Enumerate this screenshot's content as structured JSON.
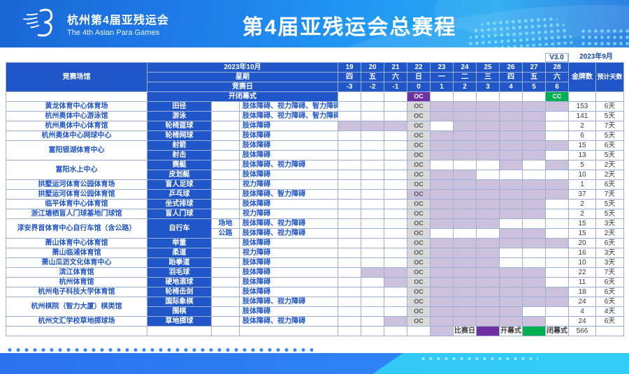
{
  "banner": {
    "logo_title": "杭州第4届亚残运会",
    "logo_subtitle": "The 4th Asian Para Games",
    "title": "第4届亚残运会总赛程"
  },
  "meta": {
    "version": "V3.0",
    "release_date": "2023年9月"
  },
  "header": {
    "venue_label": "竞赛场馆",
    "month_label": "2023年10月",
    "weekday_label": "星期",
    "compday_label": "竞赛日",
    "gold_label": "金牌数",
    "days_label": "预计天数",
    "dates": [
      "19",
      "20",
      "21",
      "22",
      "23",
      "24",
      "25",
      "26",
      "27",
      "28"
    ],
    "weekdays": [
      "四",
      "五",
      "六",
      "日",
      "一",
      "二",
      "三",
      "四",
      "五",
      "六"
    ],
    "comp_days": [
      "-3",
      "-2",
      "-1",
      "0",
      "1",
      "2",
      "3",
      "4",
      "5",
      "6"
    ]
  },
  "ceremony_row": {
    "label": "开闭幕式",
    "oc_text": "OC",
    "cc_text": "CC",
    "oc_day": 22,
    "cc_day": 28
  },
  "oc_cell_text": "OC",
  "rows": [
    {
      "venue": "黄龙体育中心体育场",
      "vspan": 1,
      "sport": "田径",
      "sspan": 1,
      "sub": "",
      "cat": "肢体障碍、视力障碍、智力障碍",
      "days": [
        23,
        24,
        25,
        26,
        27,
        28
      ],
      "gold": "153",
      "dur": "6天"
    },
    {
      "venue": "杭州奥体中心游泳馆",
      "vspan": 1,
      "sport": "游泳",
      "sspan": 1,
      "sub": "",
      "cat": "肢体障碍、视力障碍、智力障碍",
      "days": [
        23,
        24,
        25,
        26,
        27
      ],
      "gold": "141",
      "dur": "5天"
    },
    {
      "venue": "杭州奥体中心体育馆",
      "vspan": 1,
      "sport": "轮椅篮球",
      "sspan": 1,
      "sub": "",
      "cat": "肢体障碍",
      "days": [
        19,
        20,
        21,
        24,
        25,
        26,
        27
      ],
      "gold": "2",
      "dur": "7天"
    },
    {
      "venue": "杭州奥体中心网球中心",
      "vspan": 1,
      "sport": "轮椅网球",
      "sspan": 1,
      "sub": "",
      "cat": "肢体障碍",
      "days": [
        23,
        24,
        25,
        26,
        27
      ],
      "gold": "6",
      "dur": "5天"
    },
    {
      "venue": "富阳银湖体育中心",
      "vspan": 2,
      "sport": "射箭",
      "sspan": 1,
      "sub": "",
      "cat": "肢体障碍",
      "days": [
        23,
        24,
        25,
        26,
        27,
        28
      ],
      "gold": "15",
      "dur": "6天"
    },
    {
      "sport": "射击",
      "sspan": 1,
      "sub": "",
      "cat": "肢体障碍",
      "days": [
        23,
        24,
        25,
        26,
        27
      ],
      "gold": "13",
      "dur": "5天"
    },
    {
      "venue": "富阳水上中心",
      "vspan": 2,
      "sport": "赛艇",
      "sspan": 1,
      "sub": "",
      "cat": "肢体障碍、视力障碍",
      "days": [
        26,
        28
      ],
      "gold": "5",
      "dur": "2天"
    },
    {
      "sport": "皮划艇",
      "sspan": 1,
      "sub": "",
      "cat": "肢体障碍",
      "days": [
        23,
        24
      ],
      "gold": "10",
      "dur": "2天"
    },
    {
      "venue": "拱墅运河体育公园体育场",
      "vspan": 1,
      "sport": "盲人足球",
      "sspan": 1,
      "sub": "",
      "cat": "视力障碍",
      "days": [
        23,
        24,
        25,
        26,
        27,
        28
      ],
      "gold": "1",
      "dur": "6天"
    },
    {
      "venue": "拱墅运河体育公园体育馆",
      "vspan": 1,
      "sport": "乒乓球",
      "sspan": 1,
      "sub": "",
      "cat": "肢体障碍、智力障碍",
      "days": [
        22,
        23,
        24,
        25,
        26,
        27,
        28
      ],
      "gold": "37",
      "dur": "7天"
    },
    {
      "venue": "临平体育中心体育馆",
      "vspan": 1,
      "sport": "坐式排球",
      "sspan": 1,
      "sub": "",
      "cat": "肢体障碍",
      "days": [
        23,
        24,
        25,
        26,
        27
      ],
      "gold": "2",
      "dur": "5天"
    },
    {
      "venue": "浙江塘栖盲人门球基地门球馆",
      "vspan": 1,
      "sport": "盲人门球",
      "sspan": 1,
      "sub": "",
      "cat": "视力障碍",
      "days": [
        23,
        24,
        25,
        26,
        27
      ],
      "gold": "2",
      "dur": "5天"
    },
    {
      "venue": "淳安界首体育中心自行车馆（含公路）",
      "vspan": 2,
      "sport": "自行车",
      "sspan": 2,
      "sub": "场地",
      "cat": "肢体障碍、视力障碍",
      "days": [
        23,
        24,
        25
      ],
      "gold": "15",
      "dur": "3天"
    },
    {
      "sub": "公路",
      "cat": "肢体障碍、视力障碍",
      "days": [
        26,
        27
      ],
      "gold": "15",
      "dur": "2天"
    },
    {
      "venue": "萧山体育中心体育馆",
      "vspan": 1,
      "sport": "举重",
      "sspan": 1,
      "sub": "",
      "cat": "肢体障碍",
      "days": [
        23,
        24,
        25,
        26,
        27,
        28
      ],
      "gold": "20",
      "dur": "6天"
    },
    {
      "venue": "萧山临浦体育馆",
      "vspan": 1,
      "sport": "柔道",
      "sspan": 1,
      "sub": "",
      "cat": "视力障碍",
      "days": [
        23,
        24,
        25
      ],
      "gold": "16",
      "dur": "3天"
    },
    {
      "venue": "萧山瓜沥文化体育中心",
      "vspan": 1,
      "sport": "跆拳道",
      "sspan": 1,
      "sub": "",
      "cat": "肢体障碍",
      "days": [
        23,
        24,
        25
      ],
      "gold": "10",
      "dur": "3天"
    },
    {
      "venue": "滨江体育馆",
      "vspan": 1,
      "sport": "羽毛球",
      "sspan": 1,
      "sub": "",
      "cat": "肢体障碍",
      "days": [
        20,
        21,
        23,
        24,
        25,
        26,
        27
      ],
      "gold": "22",
      "dur": "7天"
    },
    {
      "venue": "杭州体育馆",
      "vspan": 1,
      "sport": "硬地滚球",
      "sspan": 1,
      "sub": "",
      "cat": "肢体障碍",
      "days": [
        21,
        23,
        24,
        25,
        26,
        27
      ],
      "gold": "11",
      "dur": "6天"
    },
    {
      "venue": "杭州电子科技大学体育馆",
      "vspan": 1,
      "sport": "轮椅击剑",
      "sspan": 1,
      "sub": "",
      "cat": "肢体障碍",
      "days": [
        23,
        24,
        25,
        26,
        27,
        28
      ],
      "gold": "18",
      "dur": "6天"
    },
    {
      "venue": "杭州棋院（智力大厦）棋类馆",
      "vspan": 2,
      "sport": "国际象棋",
      "sspan": 1,
      "sub": "",
      "cat": "肢体障碍、视力障碍",
      "days": [
        23,
        24,
        25,
        26,
        27,
        28
      ],
      "gold": "24",
      "dur": "6天"
    },
    {
      "sport": "围棋",
      "sspan": 1,
      "sub": "",
      "cat": "肢体障碍",
      "days": [
        23,
        24,
        25,
        26
      ],
      "gold": "4",
      "dur": "4天"
    },
    {
      "venue": "杭州文汇学校草地掷球场",
      "vspan": 1,
      "sport": "草地掷球",
      "sspan": 1,
      "sub": "",
      "cat": "肢体障碍、视力障碍",
      "days": [
        21,
        23,
        24,
        25,
        26,
        27
      ],
      "gold": "24",
      "dur": "6天"
    }
  ],
  "legend": {
    "comp_label": "比赛日",
    "oc_label": "开幕式",
    "cc_label": "闭幕式",
    "total_gold": "566"
  },
  "colors": {
    "header_blue": "#2156c8",
    "competition_day": "#ccc1dc",
    "opening_ceremony": "#7030a0",
    "closing_ceremony": "#00b050",
    "oc_column_grey": "#d9d9d9"
  }
}
